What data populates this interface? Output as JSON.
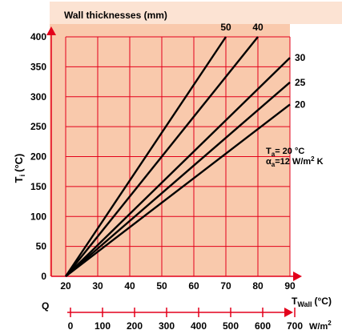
{
  "chart_data": {
    "type": "line",
    "title": "Wall thicknesses (mm)",
    "xlabel_main": "T",
    "xlabel_sub": "Wall",
    "xlabel_unit": "(°C)",
    "ylabel_main": "T",
    "ylabel_sub": "i",
    "ylabel_unit": "(°C)",
    "xlim": [
      20,
      90
    ],
    "ylim": [
      0,
      400
    ],
    "x_ticks": [
      20,
      30,
      40,
      50,
      60,
      70,
      80,
      90
    ],
    "y_ticks": [
      0,
      50,
      100,
      150,
      200,
      250,
      300,
      350,
      400
    ],
    "grid": true,
    "series": [
      {
        "name": "50",
        "x": [
          20,
          70
        ],
        "y": [
          0,
          400
        ]
      },
      {
        "name": "40",
        "x": [
          20,
          80
        ],
        "y": [
          0,
          400
        ]
      },
      {
        "name": "30",
        "x": [
          20,
          90
        ],
        "y": [
          0,
          365
        ]
      },
      {
        "name": "25",
        "x": [
          20,
          90
        ],
        "y": [
          0,
          324
        ]
      },
      {
        "name": "20",
        "x": [
          20,
          90
        ],
        "y": [
          0,
          287
        ]
      }
    ],
    "annotation": {
      "line1_main": "T",
      "line1_sub": "a",
      "line1_rest": "= 20 °C",
      "line2_main": "α",
      "line2_sub": "a",
      "line2_rest": "=12 W/m",
      "line2_sup": "2",
      "line2_tail": " K"
    },
    "secondary_axis": {
      "label": "Q",
      "ticks": [
        "0",
        "100",
        "200",
        "300",
        "400",
        "500",
        "600",
        "700"
      ],
      "unit_main": "W/m",
      "unit_sup": "2"
    }
  },
  "colors": {
    "plot_background": "#f9c9ac",
    "header_background": "#fce3d3",
    "grid": "#e3001b",
    "series": "#000000",
    "arrow": "#e3001b"
  }
}
